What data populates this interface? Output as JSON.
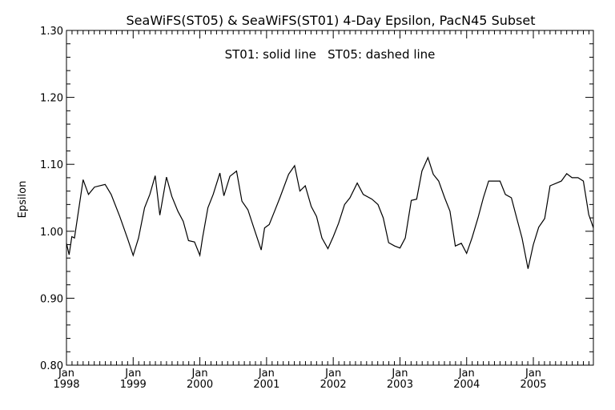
{
  "chart_data": {
    "type": "line",
    "title": "SeaWiFS(ST05) & SeaWiFS(ST01) 4-Day Epsilon, PacN45 Subset",
    "annotation": "ST01: solid line   ST05: dashed line",
    "xlabel": "",
    "ylabel": "Epsilon",
    "xlim": [
      1998.0,
      2005.9
    ],
    "ylim": [
      0.8,
      1.3
    ],
    "grid": false,
    "yticks": [
      "0.80",
      "0.90",
      "1.00",
      "1.10",
      "1.20",
      "1.30"
    ],
    "xtick_month_label": "Jan",
    "xtick_years": [
      "1998",
      "1999",
      "2000",
      "2001",
      "2002",
      "2003",
      "2004",
      "2005"
    ],
    "series": [
      {
        "x": [
          1998.0,
          1998.04,
          1998.08,
          1998.12,
          1998.25,
          1998.33,
          1998.42,
          1998.58,
          1998.67,
          1998.8,
          1998.92,
          1999.0,
          1999.08,
          1999.17,
          1999.25,
          1999.33,
          1999.4,
          1999.5,
          1999.58,
          1999.67,
          1999.75,
          1999.83,
          1999.92,
          2000.0,
          2000.04,
          2000.12,
          2000.2,
          2000.3,
          2000.36,
          2000.45,
          2000.55,
          2000.63,
          2000.72,
          2000.81,
          2000.92,
          2000.97,
          2001.04,
          2001.12,
          2001.2,
          2001.33,
          2001.42,
          2001.5,
          2001.58,
          2001.67,
          2001.75,
          2001.83,
          2001.92,
          2002.0,
          2002.08,
          2002.17,
          2002.25,
          2002.36,
          2002.45,
          2002.58,
          2002.67,
          2002.75,
          2002.83,
          2002.92,
          2003.0,
          2003.08,
          2003.17,
          2003.25,
          2003.33,
          2003.42,
          2003.5,
          2003.58,
          2003.67,
          2003.75,
          2003.83,
          2003.92,
          2004.0,
          2004.08,
          2004.17,
          2004.25,
          2004.33,
          2004.42,
          2004.5,
          2004.58,
          2004.67,
          2004.75,
          2004.83,
          2004.92,
          2005.0,
          2005.08,
          2005.17,
          2005.25,
          2005.35,
          2005.42,
          2005.5,
          2005.58,
          2005.67,
          2005.75,
          2005.83,
          2005.9
        ],
        "values": [
          0.982,
          0.965,
          0.992,
          0.99,
          1.077,
          1.055,
          1.066,
          1.07,
          1.055,
          1.022,
          0.988,
          0.964,
          0.99,
          1.035,
          1.055,
          1.083,
          1.024,
          1.081,
          1.052,
          1.03,
          1.015,
          0.986,
          0.984,
          0.964,
          0.99,
          1.035,
          1.055,
          1.087,
          1.053,
          1.082,
          1.09,
          1.045,
          1.032,
          1.005,
          0.972,
          1.005,
          1.01,
          1.03,
          1.05,
          1.085,
          1.098,
          1.06,
          1.068,
          1.037,
          1.022,
          0.99,
          0.974,
          0.992,
          1.012,
          1.04,
          1.05,
          1.072,
          1.055,
          1.048,
          1.04,
          1.02,
          0.983,
          0.978,
          0.975,
          0.99,
          1.046,
          1.048,
          1.09,
          1.11,
          1.085,
          1.075,
          1.05,
          1.03,
          0.978,
          0.982,
          0.967,
          0.99,
          1.02,
          1.05,
          1.075,
          1.075,
          1.075,
          1.055,
          1.05,
          1.02,
          0.99,
          0.944,
          0.98,
          1.006,
          1.019,
          1.068,
          1.072,
          1.075,
          1.086,
          1.08,
          1.08,
          1.075,
          1.025,
          1.005
        ]
      }
    ]
  }
}
